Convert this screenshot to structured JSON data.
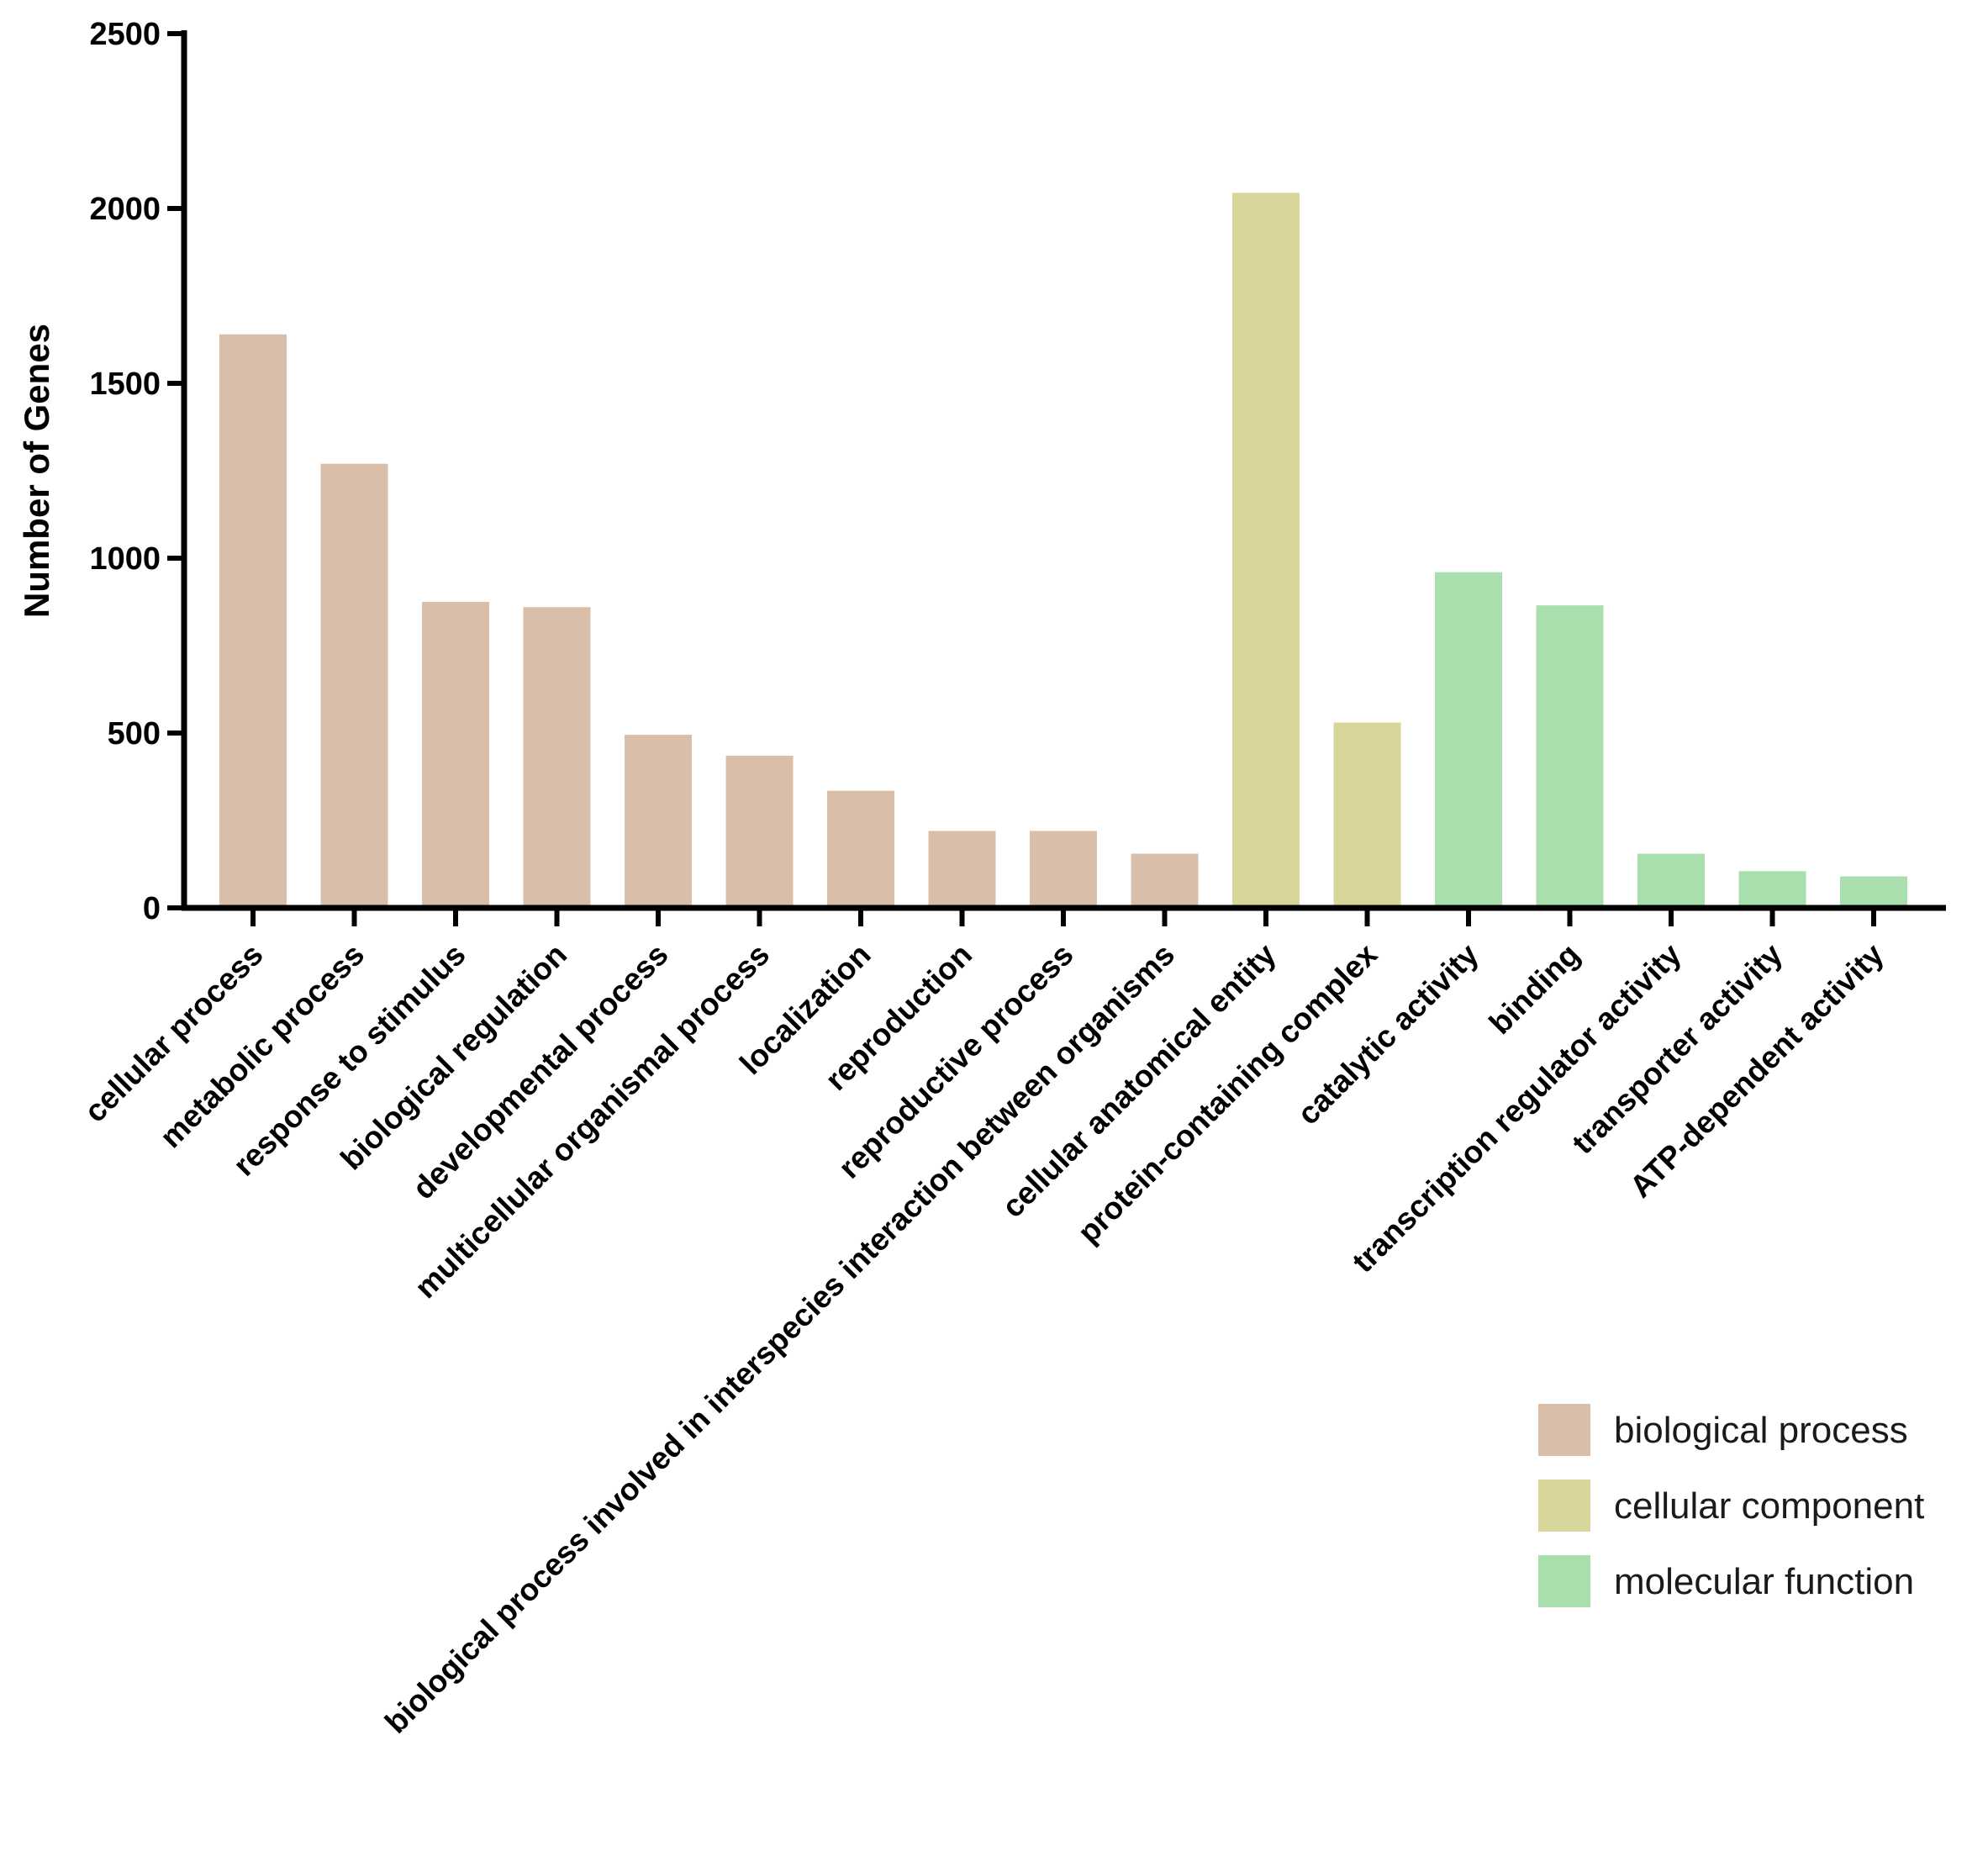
{
  "chart_data": {
    "type": "bar",
    "title": "",
    "xlabel": "",
    "ylabel": "Number of Genes",
    "ylim": [
      0,
      2500
    ],
    "yticks": [
      0,
      500,
      1000,
      1500,
      2000,
      2500
    ],
    "grid": false,
    "legend_position": "bottom-right",
    "categories": [
      "cellular process",
      "metabolic process",
      "response to stimulus",
      "biological regulation",
      "developmental process",
      "multicellular organismal process",
      "localization",
      "reproduction",
      "reproductive process",
      "biological process involved in interspecies interaction between organisms",
      "cellular anatomical entity",
      "protein-containing complex",
      "catalytic activity",
      "binding",
      "transcription regulator activity",
      "transporter activity",
      "ATP-dependent activity"
    ],
    "values": [
      1640,
      1270,
      875,
      860,
      495,
      435,
      335,
      220,
      220,
      155,
      2045,
      530,
      960,
      865,
      155,
      105,
      90
    ],
    "groups": [
      "biological process",
      "biological process",
      "biological process",
      "biological process",
      "biological process",
      "biological process",
      "biological process",
      "biological process",
      "biological process",
      "biological process",
      "cellular component",
      "cellular component",
      "molecular function",
      "molecular function",
      "molecular function",
      "molecular function",
      "molecular function"
    ],
    "legend": [
      {
        "name": "biological process",
        "color": "#d9bfa9"
      },
      {
        "name": "cellular component",
        "color": "#d8d69b"
      },
      {
        "name": "molecular function",
        "color": "#a9dfac"
      }
    ]
  }
}
